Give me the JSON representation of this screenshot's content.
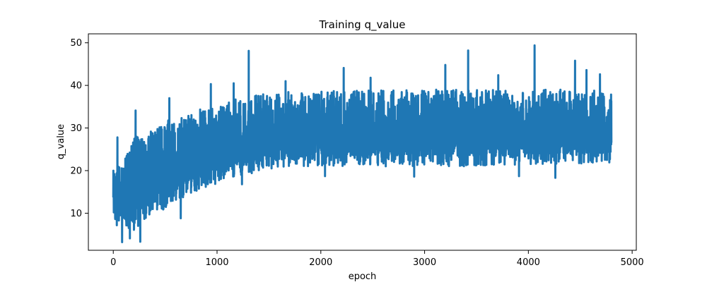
{
  "chart_data": {
    "type": "line",
    "title": "Training q_value",
    "xlabel": "epoch",
    "ylabel": "q_value",
    "xlim": [
      -240,
      5040
    ],
    "ylim": [
      1.3,
      52.1
    ],
    "x_ticks": [
      0,
      1000,
      2000,
      3000,
      4000,
      5000
    ],
    "x_tick_labels": [
      "0",
      "1000",
      "2000",
      "3000",
      "4000",
      "5000"
    ],
    "y_ticks": [
      10,
      20,
      30,
      40,
      50
    ],
    "y_tick_labels": [
      "10",
      "20",
      "30",
      "40",
      "50"
    ],
    "grid": false,
    "legend": "none",
    "series": [
      {
        "color": "#1f77b4",
        "x_range": [
          0,
          4800
        ],
        "points": 4800,
        "envelope": {
          "x": [
            0,
            100,
            200,
            300,
            400,
            500,
            600,
            700,
            800,
            900,
            1000,
            1100,
            1200,
            1300,
            1400,
            1500,
            1600,
            1700,
            1800,
            1900,
            2000,
            2100,
            2200,
            2300,
            2400,
            2500,
            2600,
            2700,
            2800,
            2900,
            3000,
            3100,
            3200,
            3300,
            3400,
            3500,
            3600,
            3700,
            3800,
            3900,
            4000,
            4100,
            4200,
            4300,
            4400,
            4500,
            4600,
            4700,
            4800
          ],
          "mean": [
            13,
            12,
            14,
            16,
            17,
            19,
            20,
            21,
            22,
            23,
            23.5,
            24,
            24.5,
            25,
            26,
            26,
            26.5,
            26.5,
            27,
            27,
            27,
            27,
            27,
            27,
            27,
            27.5,
            27.5,
            27.5,
            27.5,
            27.5,
            27.5,
            27.5,
            27.5,
            27.5,
            27.5,
            27.5,
            27.5,
            27.5,
            27.5,
            27.5,
            28,
            28,
            28,
            28,
            28,
            28,
            28,
            28,
            28
          ],
          "low": [
            8,
            5,
            6,
            8,
            10,
            11,
            13,
            14,
            15,
            16,
            17,
            18,
            19,
            19,
            20,
            20.5,
            20.5,
            21,
            21,
            21,
            20.5,
            21,
            21,
            21,
            21,
            21,
            21,
            21,
            21,
            21,
            21,
            21,
            21,
            21,
            21,
            21,
            21,
            21,
            21,
            21.5,
            21.5,
            21.5,
            21.5,
            21.5,
            21.5,
            21.5,
            21.5,
            21.5,
            21.5
          ],
          "high": [
            20,
            22,
            28,
            28,
            30,
            32,
            33,
            33,
            34,
            35,
            35,
            36,
            37,
            38,
            38,
            38,
            38,
            38.5,
            38.5,
            38.5,
            38.5,
            39,
            39,
            39,
            39,
            39,
            39,
            39,
            39,
            39,
            39,
            39,
            39,
            39,
            39,
            39,
            39,
            39,
            39,
            39,
            39,
            39,
            39,
            39,
            39,
            39,
            39,
            38.5,
            38.5
          ]
        },
        "spikes": [
          {
            "x": 40,
            "y": 27.8
          },
          {
            "x": 85,
            "y": 3.2
          },
          {
            "x": 160,
            "y": 4.1
          },
          {
            "x": 215,
            "y": 34.1
          },
          {
            "x": 260,
            "y": 3.3
          },
          {
            "x": 540,
            "y": 37
          },
          {
            "x": 650,
            "y": 8.8
          },
          {
            "x": 940,
            "y": 40.3
          },
          {
            "x": 1160,
            "y": 40.5
          },
          {
            "x": 1240,
            "y": 16.8
          },
          {
            "x": 1305,
            "y": 48.1
          },
          {
            "x": 1660,
            "y": 41
          },
          {
            "x": 2040,
            "y": 18.7
          },
          {
            "x": 2220,
            "y": 44.1
          },
          {
            "x": 2480,
            "y": 41.8
          },
          {
            "x": 2900,
            "y": 18.6
          },
          {
            "x": 3200,
            "y": 44.8
          },
          {
            "x": 3420,
            "y": 48.2
          },
          {
            "x": 3710,
            "y": 42.4
          },
          {
            "x": 3910,
            "y": 18.7
          },
          {
            "x": 4060,
            "y": 49.4
          },
          {
            "x": 4260,
            "y": 18.3
          },
          {
            "x": 4450,
            "y": 45.8
          },
          {
            "x": 4560,
            "y": 43.6
          },
          {
            "x": 4690,
            "y": 42.6
          }
        ]
      }
    ]
  }
}
